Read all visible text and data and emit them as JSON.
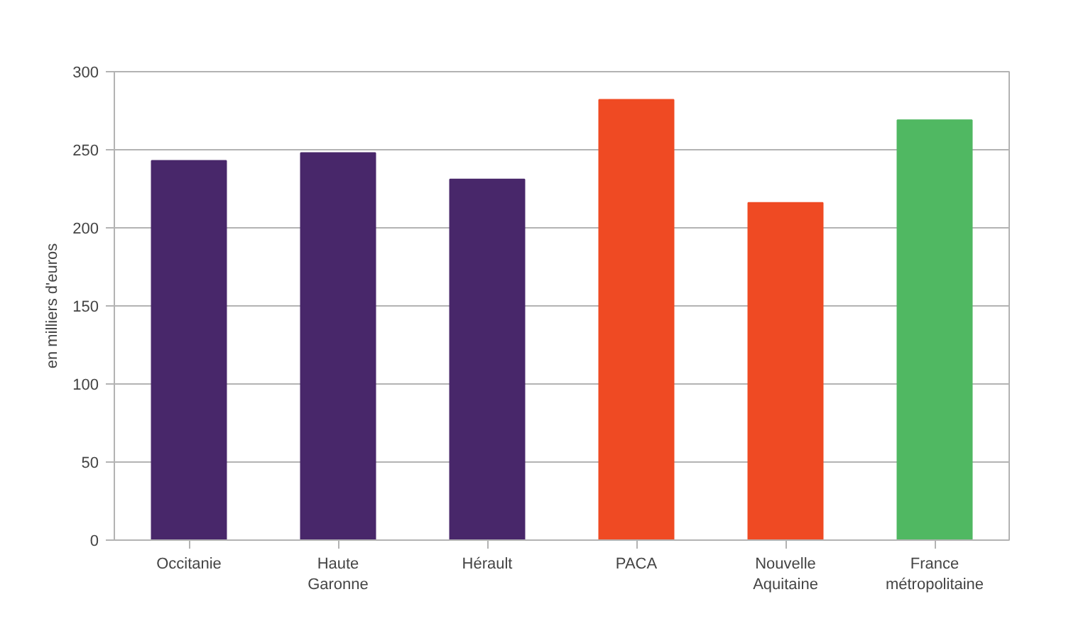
{
  "chart_data": {
    "type": "bar",
    "ylabel": "en milliers d'euros",
    "categories": [
      "Occitanie",
      "Haute Garonne",
      "Hérault",
      "PACA",
      "Nouvelle Aquitaine",
      "France métropolitaine"
    ],
    "values": [
      243,
      248,
      231,
      282,
      216,
      269
    ],
    "colors": [
      "#48276a",
      "#48276a",
      "#48276a",
      "#ef4a23",
      "#ef4a23",
      "#50b862"
    ],
    "ylim": [
      0,
      300
    ],
    "yticks": [
      0,
      50,
      100,
      150,
      200,
      250,
      300
    ],
    "grid": "y"
  }
}
